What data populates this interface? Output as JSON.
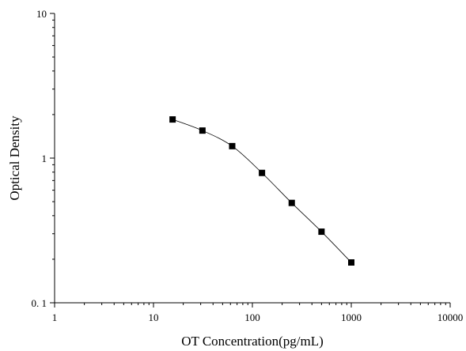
{
  "chart_data": {
    "type": "scatter",
    "title": "",
    "xlabel": "OT Concentration(pg/mL)",
    "ylabel": "Optical Density",
    "x_scale": "log",
    "y_scale": "log",
    "xlim": [
      1,
      10000
    ],
    "ylim": [
      0.1,
      10
    ],
    "x_ticks": [
      1,
      10,
      100,
      1000,
      10000
    ],
    "x_tick_labels": [
      "1",
      "10",
      "100",
      "1000",
      "10000"
    ],
    "y_ticks": [
      0.1,
      1,
      10
    ],
    "y_tick_labels": [
      "0. 1",
      "1",
      "10"
    ],
    "grid": false,
    "legend": "none",
    "series": [
      {
        "x": [
          15.6,
          31.25,
          62.5,
          125,
          250,
          500,
          1000
        ],
        "y": [
          1.85,
          1.55,
          1.21,
          0.79,
          0.49,
          0.31,
          0.19
        ],
        "marker": "square",
        "fit": "smooth-curve",
        "color": "#000000"
      }
    ]
  }
}
